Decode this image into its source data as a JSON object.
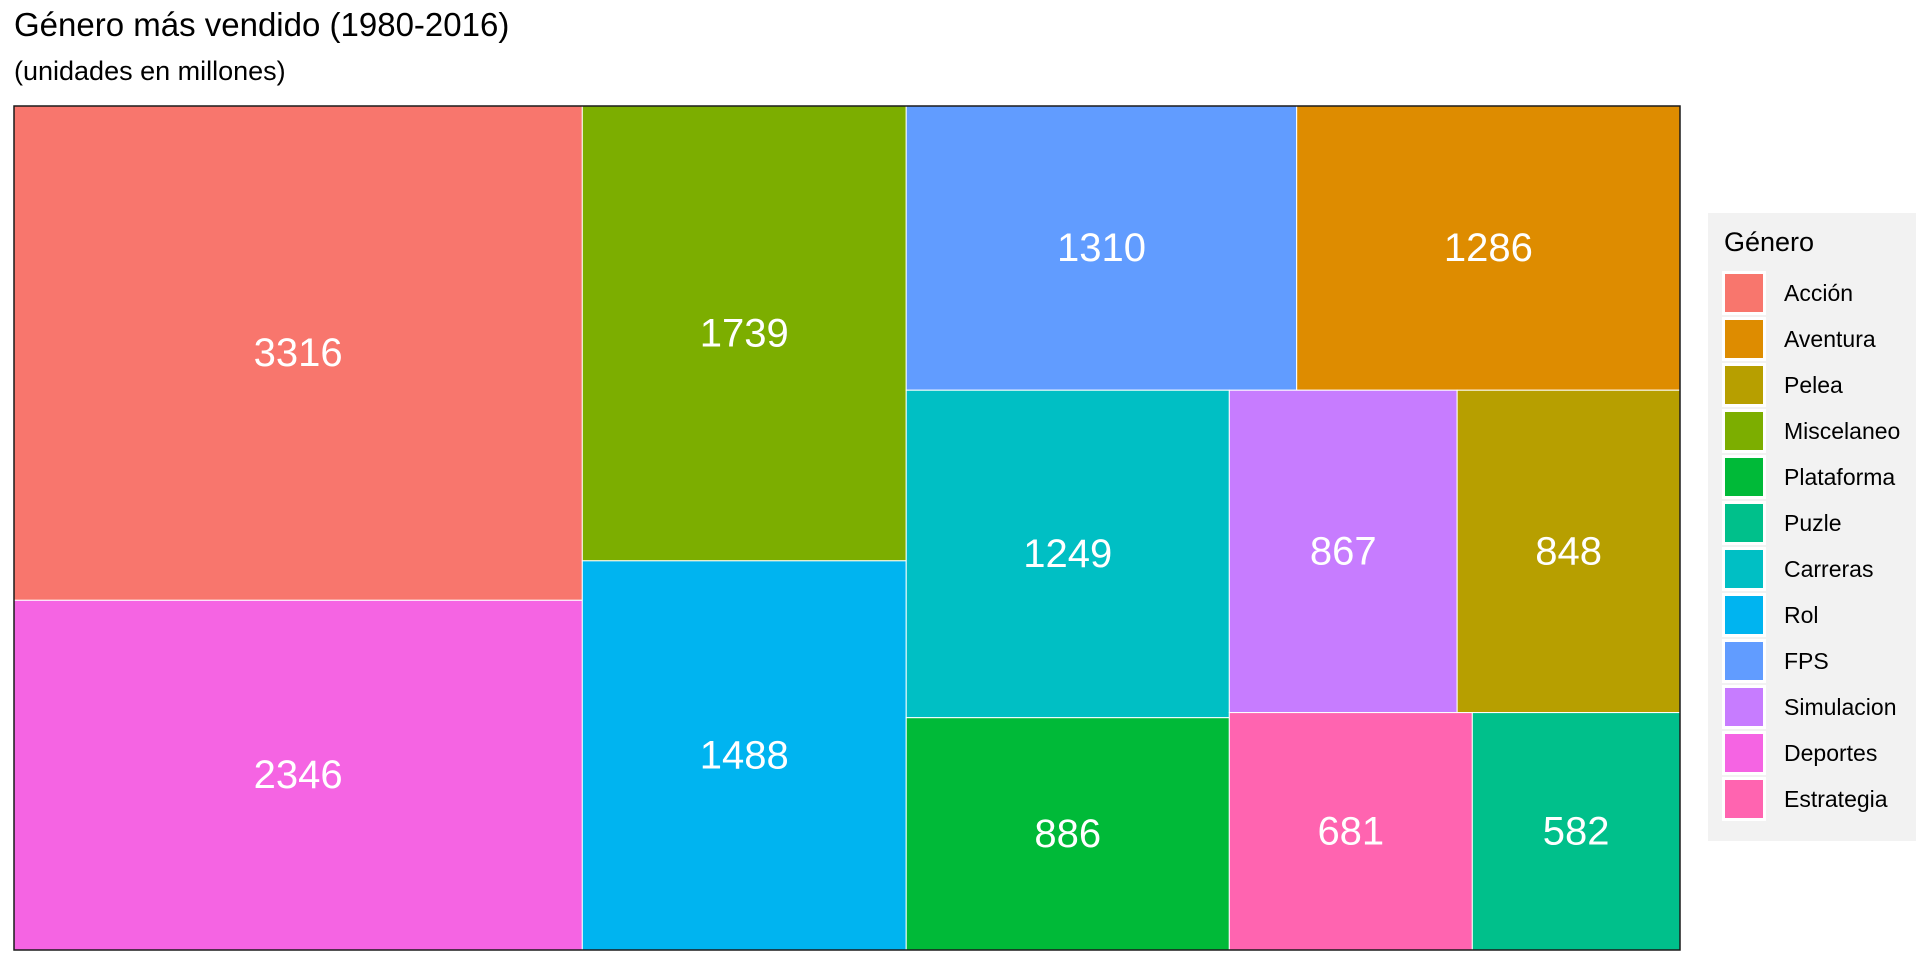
{
  "header": {
    "title": "Género más vendido (1980-2016)",
    "subtitle": "(unidades en millones)"
  },
  "chart_data": {
    "type": "treemap",
    "title": "Género más vendido (1980-2016)",
    "subtitle": "(unidades en millones)",
    "legend_title": "Género",
    "legend_position": "right",
    "label_color": "#ffffff",
    "categories": [
      "Acción",
      "Aventura",
      "Pelea",
      "Miscelaneo",
      "Plataforma",
      "Puzle",
      "Carreras",
      "Rol",
      "FPS",
      "Simulacion",
      "Deportes",
      "Estrategia"
    ],
    "colors": [
      "#F8766D",
      "#DE8C00",
      "#B79F00",
      "#7CAE00",
      "#00BA38",
      "#00C08B",
      "#00BFC4",
      "#00B4F0",
      "#619CFF",
      "#C77CFF",
      "#F564E3",
      "#FF64B0"
    ],
    "values": [
      3316,
      1286,
      848,
      1739,
      886,
      582,
      1249,
      1488,
      1310,
      867,
      2346,
      681
    ]
  }
}
